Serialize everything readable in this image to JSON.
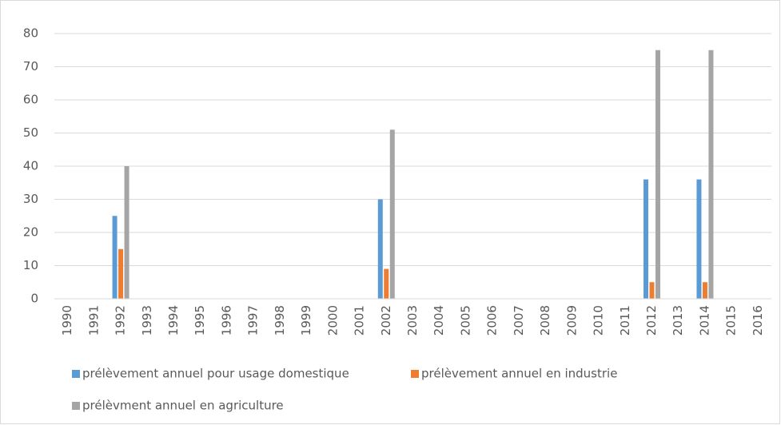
{
  "chart_data": {
    "type": "bar",
    "categories": [
      "1990",
      "1991",
      "1992",
      "1993",
      "1994",
      "1995",
      "1996",
      "1997",
      "1998",
      "1999",
      "2000",
      "2001",
      "2002",
      "2003",
      "2004",
      "2005",
      "2006",
      "2007",
      "2008",
      "2009",
      "2010",
      "2011",
      "2012",
      "2013",
      "2014",
      "2015",
      "2016"
    ],
    "series": [
      {
        "name": "prélèvement annuel pour usage domestique",
        "color": "#5b9bd5",
        "values": [
          null,
          null,
          25,
          null,
          null,
          null,
          null,
          null,
          null,
          null,
          null,
          null,
          30,
          null,
          null,
          null,
          null,
          null,
          null,
          null,
          null,
          null,
          36,
          null,
          36,
          null,
          null
        ]
      },
      {
        "name": "prélèvement annuel en industrie",
        "color": "#ed7d31",
        "values": [
          null,
          null,
          15,
          null,
          null,
          null,
          null,
          null,
          null,
          null,
          null,
          null,
          9,
          null,
          null,
          null,
          null,
          null,
          null,
          null,
          null,
          null,
          5,
          null,
          5,
          null,
          null
        ]
      },
      {
        "name": "prélèvment annuel en agriculture",
        "color": "#a5a5a5",
        "values": [
          null,
          null,
          40,
          null,
          null,
          null,
          null,
          null,
          null,
          null,
          null,
          null,
          51,
          null,
          null,
          null,
          null,
          null,
          null,
          null,
          null,
          null,
          75,
          null,
          75,
          null,
          null
        ]
      }
    ],
    "ylim": [
      0,
      80
    ],
    "yticks": [
      0,
      10,
      20,
      30,
      40,
      50,
      60,
      70,
      80
    ],
    "grid": true
  }
}
